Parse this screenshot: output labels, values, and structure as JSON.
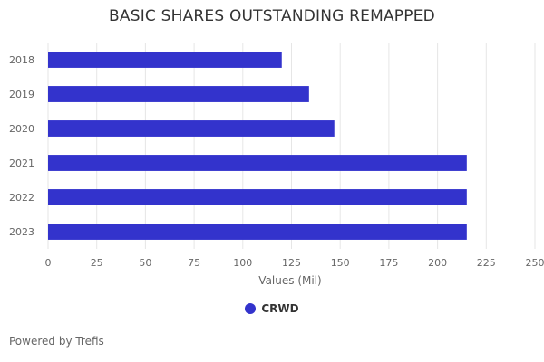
{
  "chart_data": {
    "type": "bar",
    "orientation": "horizontal",
    "title": "BASIC SHARES OUTSTANDING REMAPPED",
    "categories": [
      "2018",
      "2019",
      "2020",
      "2021",
      "2022",
      "2023"
    ],
    "series": [
      {
        "name": "CRWD",
        "values": [
          120,
          134,
          147,
          215,
          215,
          215
        ]
      }
    ],
    "xlabel": "Values (Mil)",
    "ylabel": "",
    "xlim": [
      0,
      250
    ],
    "xticks": [
      0,
      25,
      50,
      75,
      100,
      125,
      150,
      175,
      200,
      225,
      250
    ],
    "grid": true,
    "legend": "bottom-center"
  },
  "colors": {
    "series": "#3333cc",
    "grid": "#e6e6e6"
  },
  "footer": {
    "credits": "Powered by Trefis"
  }
}
